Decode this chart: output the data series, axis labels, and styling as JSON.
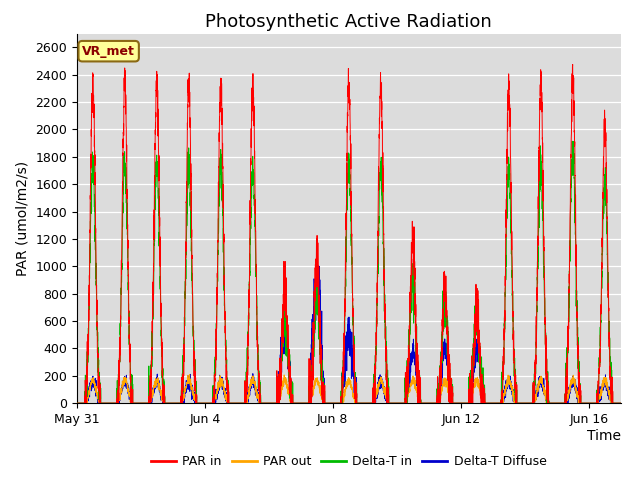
{
  "title": "Photosynthetic Active Radiation",
  "ylabel": "PAR (umol/m2/s)",
  "xlabel": "Time",
  "ylim": [
    0,
    2700
  ],
  "yticks": [
    0,
    200,
    400,
    600,
    800,
    1000,
    1200,
    1400,
    1600,
    1800,
    2000,
    2200,
    2400,
    2600
  ],
  "xtick_labels": [
    "May 31",
    "Jun 4",
    "Jun 8",
    "Jun 12",
    "Jun 16"
  ],
  "label_box": "VR_met",
  "colors": {
    "par_in": "#FF0000",
    "par_out": "#FFA500",
    "delta_t_in": "#00BB00",
    "delta_t_diffuse": "#0000CC"
  },
  "legend_labels": [
    "PAR in",
    "PAR out",
    "Delta-T in",
    "Delta-T Diffuse"
  ],
  "background_color": "#DCDCDC",
  "fig_background": "#FFFFFF",
  "title_fontsize": 13,
  "axis_fontsize": 10,
  "n_days": 18,
  "samples_per_day": 288,
  "xtick_positions": [
    0,
    4,
    8,
    12,
    16
  ]
}
